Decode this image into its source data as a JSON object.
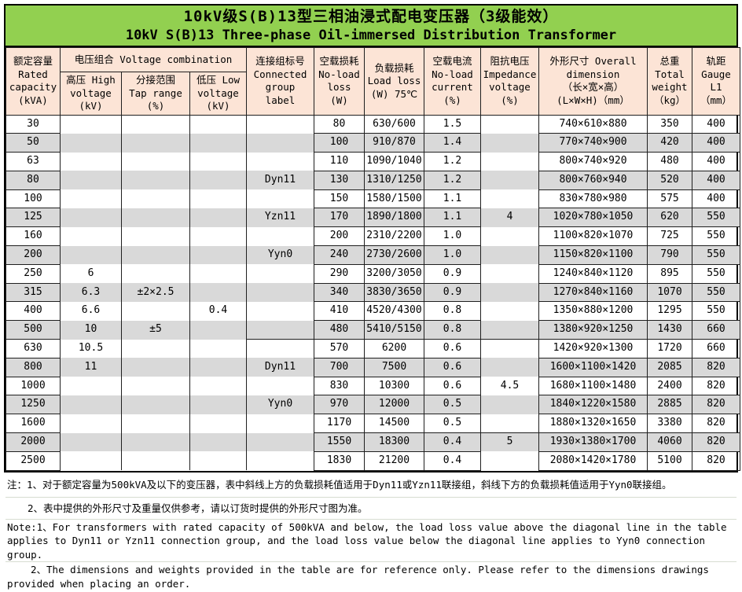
{
  "title": {
    "zh": "10kV级S(B)13型三相油浸式配电变压器（3级能效）",
    "en": "10kV S(B)13 Three-phase Oil-immersed Distribution Transformer"
  },
  "colors": {
    "title_bg": "#92D050",
    "header_bg": "#FCE4D6",
    "stripe_bg": "#D9D9D9",
    "border": "#1f1f1f"
  },
  "header": {
    "capacity": "额定容量\nRated\ncapacity\n(kVA)",
    "voltage_combination": "电压组合 Voltage combination",
    "hv": "高压 High\nvoltage\n(kV)",
    "tap": "分接范围\nTap range\n(%)",
    "lv": "低压 Low\nvoltage\n(kV)",
    "group": "连接组标号\nConnected\ngroup\nlabel",
    "noload": "空载损耗\nNo-load\nloss\n(W)",
    "loadloss": "负载损耗\nLoad loss\n(W) 75℃",
    "current": "空载电流\nNo-load\ncurrent\n(%)",
    "impedance": "阻抗电压\nImpedance\nvoltage\n(%)",
    "dimension": "外形尺寸 Overall\ndimension\n（长×宽×高）\n(L×W×H)（mm）",
    "weight": "总重\nTotal\nweight\n（kg）",
    "gauge": "轨距\nGauge\nL1\n（mm）"
  },
  "rows": [
    {
      "capacity": "30",
      "hv": "",
      "tap": "",
      "lv": "",
      "group": "",
      "noload": "80",
      "loadloss": "630/600",
      "current": "1.5",
      "impedance": "",
      "dimension": "740×610×880",
      "weight": "350",
      "gauge": "400"
    },
    {
      "capacity": "50",
      "hv": "",
      "tap": "",
      "lv": "",
      "group": "",
      "noload": "100",
      "loadloss": "910/870",
      "current": "1.4",
      "impedance": "",
      "dimension": "770×740×900",
      "weight": "420",
      "gauge": "400"
    },
    {
      "capacity": "63",
      "hv": "",
      "tap": "",
      "lv": "",
      "group": "",
      "noload": "110",
      "loadloss": "1090/1040",
      "current": "1.2",
      "impedance": "",
      "dimension": "800×740×920",
      "weight": "480",
      "gauge": "400"
    },
    {
      "capacity": "80",
      "hv": "",
      "tap": "",
      "lv": "",
      "group": "Dyn11",
      "noload": "130",
      "loadloss": "1310/1250",
      "current": "1.2",
      "impedance": "",
      "dimension": "800×760×940",
      "weight": "520",
      "gauge": "400"
    },
    {
      "capacity": "100",
      "hv": "",
      "tap": "",
      "lv": "",
      "group": "",
      "noload": "150",
      "loadloss": "1580/1500",
      "current": "1.1",
      "impedance": "",
      "dimension": "830×780×980",
      "weight": "575",
      "gauge": "400"
    },
    {
      "capacity": "125",
      "hv": "",
      "tap": "",
      "lv": "",
      "group": "Yzn11",
      "noload": "170",
      "loadloss": "1890/1800",
      "current": "1.1",
      "impedance": "4",
      "dimension": "1020×780×1050",
      "weight": "620",
      "gauge": "550"
    },
    {
      "capacity": "160",
      "hv": "",
      "tap": "",
      "lv": "",
      "group": "",
      "noload": "200",
      "loadloss": "2310/2200",
      "current": "1.0",
      "impedance": "",
      "dimension": "1100×820×1070",
      "weight": "725",
      "gauge": "550"
    },
    {
      "capacity": "200",
      "hv": "",
      "tap": "",
      "lv": "",
      "group": "Yyn0",
      "noload": "240",
      "loadloss": "2730/2600",
      "current": "1.0",
      "impedance": "",
      "dimension": "1150×820×1100",
      "weight": "790",
      "gauge": "550"
    },
    {
      "capacity": "250",
      "hv": "6",
      "tap": "",
      "lv": "",
      "group": "",
      "noload": "290",
      "loadloss": "3200/3050",
      "current": "0.9",
      "impedance": "",
      "dimension": "1240×840×1120",
      "weight": "895",
      "gauge": "550"
    },
    {
      "capacity": "315",
      "hv": "6.3",
      "tap": "±2×2.5",
      "lv": "",
      "group": "",
      "noload": "340",
      "loadloss": "3830/3650",
      "current": "0.9",
      "impedance": "",
      "dimension": "1270×840×1160",
      "weight": "1070",
      "gauge": "550"
    },
    {
      "capacity": "400",
      "hv": "6.6",
      "tap": "",
      "lv": "0.4",
      "group": "",
      "noload": "410",
      "loadloss": "4520/4300",
      "current": "0.8",
      "impedance": "",
      "dimension": "1350×880×1200",
      "weight": "1295",
      "gauge": "550"
    },
    {
      "capacity": "500",
      "hv": "10",
      "tap": "±5",
      "lv": "",
      "group": "",
      "noload": "480",
      "loadloss": "5410/5150",
      "current": "0.8",
      "impedance": "",
      "dimension": "1380×920×1250",
      "weight": "1430",
      "gauge": "660"
    },
    {
      "capacity": "630",
      "hv": "10.5",
      "tap": "",
      "lv": "",
      "group": "",
      "noload": "570",
      "loadloss": "6200",
      "current": "0.6",
      "impedance": "",
      "dimension": "1420×920×1300",
      "weight": "1720",
      "gauge": "660"
    },
    {
      "capacity": "800",
      "hv": "11",
      "tap": "",
      "lv": "",
      "group": "Dyn11",
      "noload": "700",
      "loadloss": "7500",
      "current": "0.6",
      "impedance": "",
      "dimension": "1600×1100×1420",
      "weight": "2085",
      "gauge": "820"
    },
    {
      "capacity": "1000",
      "hv": "",
      "tap": "",
      "lv": "",
      "group": "",
      "noload": "830",
      "loadloss": "10300",
      "current": "0.6",
      "impedance": "4.5",
      "dimension": "1680×1100×1480",
      "weight": "2400",
      "gauge": "820"
    },
    {
      "capacity": "1250",
      "hv": "",
      "tap": "",
      "lv": "",
      "group": "Yyn0",
      "noload": "970",
      "loadloss": "12000",
      "current": "0.5",
      "impedance": "",
      "dimension": "1840×1220×1580",
      "weight": "2885",
      "gauge": "820"
    },
    {
      "capacity": "1600",
      "hv": "",
      "tap": "",
      "lv": "",
      "group": "",
      "noload": "1170",
      "loadloss": "14500",
      "current": "0.5",
      "impedance": "",
      "dimension": "1880×1320×1650",
      "weight": "3380",
      "gauge": "820"
    },
    {
      "capacity": "2000",
      "hv": "",
      "tap": "",
      "lv": "",
      "group": "",
      "noload": "1550",
      "loadloss": "18300",
      "current": "0.4",
      "impedance": "5",
      "dimension": "1930×1380×1700",
      "weight": "4060",
      "gauge": "820"
    },
    {
      "capacity": "2500",
      "hv": "",
      "tap": "",
      "lv": "",
      "group": "",
      "noload": "1830",
      "loadloss": "21200",
      "current": "0.4",
      "impedance": "",
      "dimension": "2080×1420×1780",
      "weight": "5100",
      "gauge": "820"
    }
  ],
  "notes": {
    "zh1": "注：1、对于额定容量为500kVA及以下的变压器，表中斜线上方的负载损耗值适用于Dyn11或Yzn11联接组，斜线下方的负载损耗值适用于Yyn0联接组。",
    "zh2": "2、表中提供的外形尺寸及重量仅供参考，请以订货时提供的外形尺寸图为准。",
    "en1": "Note:1、For transformers with rated capacity of 500kVA and below, the load loss value above the diagonal line in the table applies to Dyn11 or Yzn11 connection group, and the load loss value below the diagonal line applies to Yyn0 connection group.",
    "en2": "2、The dimensions and weights provided in the table are for reference only. Please refer to the dimensions drawings provided when placing an order."
  }
}
